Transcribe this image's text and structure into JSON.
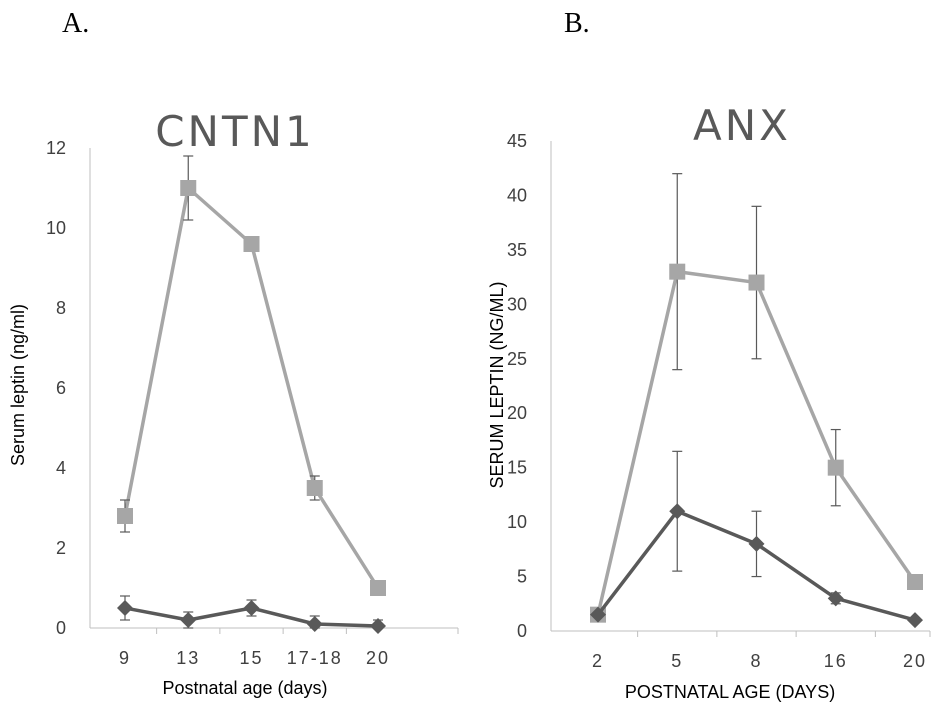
{
  "panels": {
    "a_label": "A.",
    "b_label": "B."
  },
  "chart_data": [
    {
      "type": "line",
      "title": "CNTN1",
      "xlabel": "Postnatal age (days)",
      "ylabel": "Serum leptin (ng/ml)",
      "categories": [
        "9",
        "13",
        "15",
        "17-18",
        "20"
      ],
      "ylim": [
        0,
        12
      ],
      "yticks": [
        0,
        2,
        4,
        6,
        8,
        10,
        12
      ],
      "grid": false,
      "legend": "none",
      "series": [
        {
          "color": "#a6a6a6",
          "marker": "square",
          "values": [
            2.8,
            11.0,
            9.6,
            3.5,
            1.0
          ],
          "err_low": [
            2.4,
            10.2,
            9.5,
            3.2,
            0.9
          ],
          "err_high": [
            3.2,
            11.8,
            9.7,
            3.8,
            1.1
          ]
        },
        {
          "color": "#595959",
          "marker": "diamond",
          "values": [
            0.5,
            0.2,
            0.5,
            0.1,
            0.05
          ],
          "err_low": [
            0.2,
            0.0,
            0.3,
            0.0,
            0.0
          ],
          "err_high": [
            0.8,
            0.4,
            0.7,
            0.3,
            0.2
          ]
        }
      ]
    },
    {
      "type": "line",
      "title": "ANX",
      "xlabel": "POSTNATAL AGE (DAYS)",
      "ylabel": "SERUM LEPTIN (NG/ML)",
      "categories": [
        "2",
        "5",
        "8",
        "16",
        "20"
      ],
      "ylim": [
        0,
        45
      ],
      "yticks": [
        0,
        5,
        10,
        15,
        20,
        25,
        30,
        35,
        40,
        45
      ],
      "grid": false,
      "legend": "none",
      "series": [
        {
          "color": "#a6a6a6",
          "marker": "square",
          "values": [
            1.5,
            33,
            32,
            15,
            4.5
          ],
          "err_low": [
            1.5,
            24,
            25,
            11.5,
            4.5
          ],
          "err_high": [
            1.5,
            42,
            39,
            18.5,
            4.5
          ]
        },
        {
          "color": "#595959",
          "marker": "diamond",
          "values": [
            1.5,
            11,
            8,
            3,
            1
          ],
          "err_low": [
            1.5,
            5.5,
            5,
            2.5,
            1
          ],
          "err_high": [
            1.5,
            16.5,
            11,
            3.5,
            1
          ]
        }
      ]
    }
  ]
}
